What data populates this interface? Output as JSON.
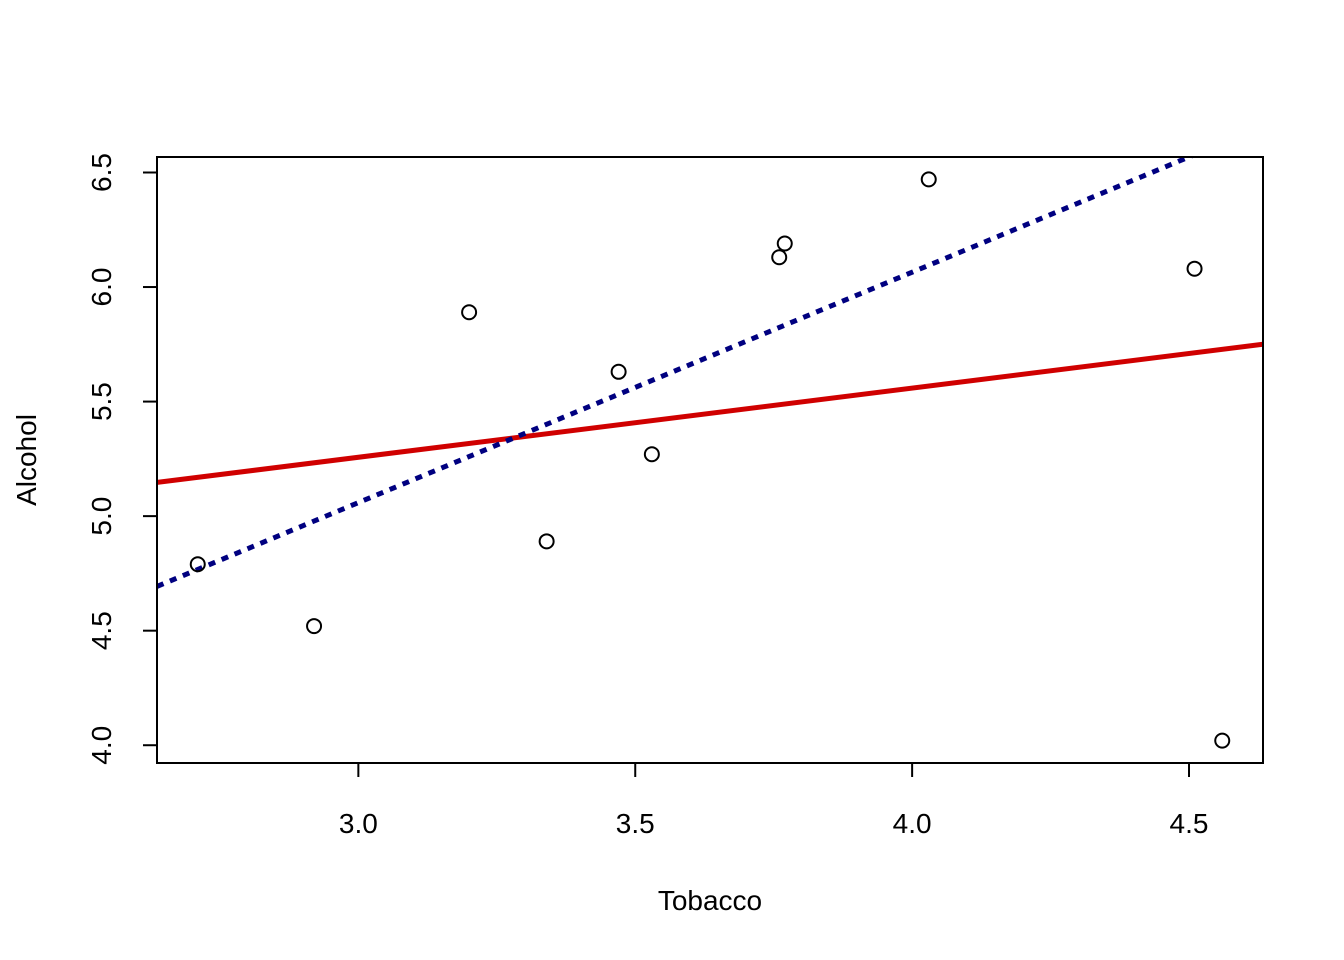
{
  "chart_data": {
    "type": "scatter",
    "xlabel": "Tobacco",
    "ylabel": "Alcohol",
    "xlim": [
      2.6364,
      4.6336
    ],
    "ylim": [
      3.9224,
      6.5676
    ],
    "xticks": [
      3.0,
      3.5,
      4.0,
      4.5
    ],
    "xtick_labels": [
      "3.0",
      "3.5",
      "4.0",
      "4.5"
    ],
    "yticks": [
      4.0,
      4.5,
      5.0,
      5.5,
      6.0,
      6.5
    ],
    "ytick_labels": [
      "4.0",
      "4.5",
      "5.0",
      "5.5",
      "6.0",
      "6.5"
    ],
    "grid": false,
    "points": {
      "x": [
        2.71,
        2.92,
        3.2,
        3.34,
        3.47,
        3.53,
        3.76,
        3.77,
        4.03,
        4.51,
        4.56
      ],
      "y": [
        4.79,
        4.52,
        5.89,
        4.89,
        5.63,
        5.27,
        6.13,
        6.19,
        6.47,
        6.08,
        4.02
      ]
    },
    "lines": [
      {
        "style": "solid",
        "color": "#D00000",
        "intercept": 4.3512,
        "slope": 0.3019
      },
      {
        "style": "dotted",
        "color": "#000080",
        "intercept": 2.0412,
        "slope": 1.0059
      }
    ]
  }
}
